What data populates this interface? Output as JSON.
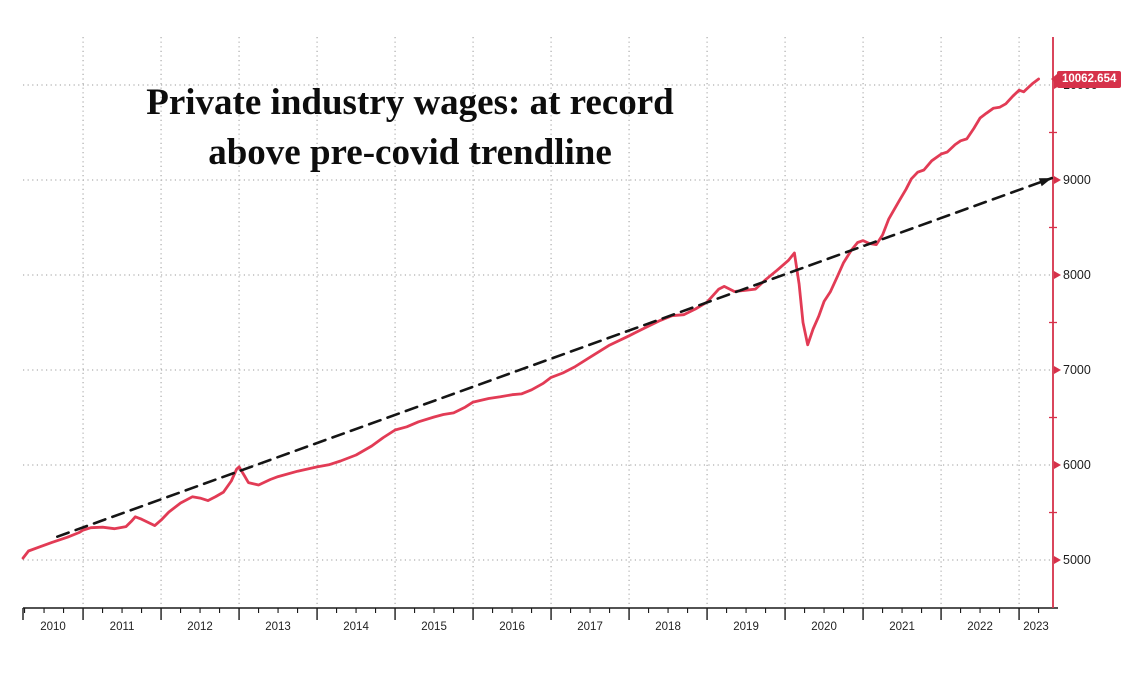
{
  "title": {
    "line1": "Private industry wages: at record",
    "line2": "above pre-covid trendline"
  },
  "colors": {
    "series_line": "#e23b55",
    "trend_line": "#151515",
    "y_axis": "#d6314a",
    "label_box": "#d6314a",
    "grid": "#9b9b9b",
    "x_axis": "#1a1a1a",
    "tick_text": "#1c1c1c"
  },
  "last_value": {
    "text": "10062.654",
    "value": 10062.654
  },
  "chart_data": {
    "type": "line",
    "title": "Private industry wages: at record above pre-covid trendline",
    "xlabel": "",
    "ylabel": "",
    "grid": true,
    "legend": false,
    "x_axis": {
      "unit": "year",
      "range": [
        2010.23,
        2023.435
      ],
      "year_labels": [
        "2010",
        "2011",
        "2012",
        "2013",
        "2014",
        "2015",
        "2016",
        "2017",
        "2018",
        "2019",
        "2020",
        "2021",
        "2022",
        "2023"
      ],
      "gridline_years": [
        2011,
        2012,
        2013,
        2014,
        2015,
        2016,
        2017,
        2018,
        2019,
        2020,
        2021,
        2022,
        2023
      ],
      "minor_tick_step": 0.25
    },
    "y_axis": {
      "side": "right",
      "range": [
        4495,
        10505
      ],
      "tick_values": [
        5000,
        6000,
        7000,
        8000,
        9000,
        10000
      ],
      "minor_tick_values": [
        5500,
        6500,
        7500,
        8500,
        9500
      ],
      "last_value_label": "10062.654"
    },
    "series": [
      {
        "name": "private-industry-wages",
        "style": "solid",
        "points": [
          [
            2010.23,
            5020
          ],
          [
            2010.3,
            5095
          ],
          [
            2010.45,
            5140
          ],
          [
            2010.6,
            5185
          ],
          [
            2010.8,
            5240
          ],
          [
            2010.95,
            5290
          ],
          [
            2011.0,
            5315
          ],
          [
            2011.1,
            5340
          ],
          [
            2011.25,
            5345
          ],
          [
            2011.4,
            5330
          ],
          [
            2011.55,
            5352
          ],
          [
            2011.62,
            5408
          ],
          [
            2011.67,
            5455
          ],
          [
            2011.75,
            5430
          ],
          [
            2011.83,
            5398
          ],
          [
            2011.92,
            5362
          ],
          [
            2012.0,
            5420
          ],
          [
            2012.1,
            5505
          ],
          [
            2012.25,
            5600
          ],
          [
            2012.4,
            5665
          ],
          [
            2012.5,
            5652
          ],
          [
            2012.6,
            5625
          ],
          [
            2012.7,
            5668
          ],
          [
            2012.8,
            5715
          ],
          [
            2012.9,
            5832
          ],
          [
            2012.97,
            5958
          ],
          [
            2013.0,
            5980
          ],
          [
            2013.07,
            5885
          ],
          [
            2013.12,
            5815
          ],
          [
            2013.25,
            5790
          ],
          [
            2013.4,
            5848
          ],
          [
            2013.5,
            5878
          ],
          [
            2013.75,
            5935
          ],
          [
            2014.0,
            5980
          ],
          [
            2014.15,
            6002
          ],
          [
            2014.3,
            6042
          ],
          [
            2014.5,
            6105
          ],
          [
            2014.7,
            6200
          ],
          [
            2014.85,
            6290
          ],
          [
            2015.0,
            6368
          ],
          [
            2015.15,
            6402
          ],
          [
            2015.3,
            6455
          ],
          [
            2015.5,
            6505
          ],
          [
            2015.62,
            6532
          ],
          [
            2015.75,
            6548
          ],
          [
            2015.9,
            6610
          ],
          [
            2016.0,
            6662
          ],
          [
            2016.2,
            6700
          ],
          [
            2016.35,
            6718
          ],
          [
            2016.5,
            6740
          ],
          [
            2016.62,
            6748
          ],
          [
            2016.75,
            6792
          ],
          [
            2016.9,
            6860
          ],
          [
            2017.0,
            6922
          ],
          [
            2017.15,
            6968
          ],
          [
            2017.3,
            7032
          ],
          [
            2017.5,
            7135
          ],
          [
            2017.75,
            7262
          ],
          [
            2018.0,
            7360
          ],
          [
            2018.2,
            7442
          ],
          [
            2018.4,
            7522
          ],
          [
            2018.55,
            7572
          ],
          [
            2018.7,
            7582
          ],
          [
            2018.85,
            7642
          ],
          [
            2019.0,
            7715
          ],
          [
            2019.15,
            7852
          ],
          [
            2019.22,
            7880
          ],
          [
            2019.35,
            7826
          ],
          [
            2019.5,
            7840
          ],
          [
            2019.62,
            7852
          ],
          [
            2019.75,
            7950
          ],
          [
            2019.9,
            8052
          ],
          [
            2020.04,
            8152
          ],
          [
            2020.12,
            8232
          ],
          [
            2020.18,
            7905
          ],
          [
            2020.23,
            7500
          ],
          [
            2020.29,
            7265
          ],
          [
            2020.36,
            7432
          ],
          [
            2020.43,
            7562
          ],
          [
            2020.5,
            7722
          ],
          [
            2020.58,
            7822
          ],
          [
            2020.67,
            7982
          ],
          [
            2020.75,
            8130
          ],
          [
            2020.85,
            8262
          ],
          [
            2020.93,
            8342
          ],
          [
            2021.0,
            8362
          ],
          [
            2021.08,
            8332
          ],
          [
            2021.17,
            8320
          ],
          [
            2021.25,
            8422
          ],
          [
            2021.33,
            8590
          ],
          [
            2021.47,
            8790
          ],
          [
            2021.55,
            8902
          ],
          [
            2021.62,
            9012
          ],
          [
            2021.7,
            9082
          ],
          [
            2021.78,
            9105
          ],
          [
            2021.88,
            9202
          ],
          [
            2022.0,
            9272
          ],
          [
            2022.08,
            9295
          ],
          [
            2022.18,
            9372
          ],
          [
            2022.25,
            9412
          ],
          [
            2022.33,
            9432
          ],
          [
            2022.42,
            9542
          ],
          [
            2022.5,
            9652
          ],
          [
            2022.58,
            9702
          ],
          [
            2022.67,
            9755
          ],
          [
            2022.75,
            9765
          ],
          [
            2022.83,
            9802
          ],
          [
            2022.92,
            9882
          ],
          [
            2023.0,
            9945
          ],
          [
            2023.06,
            9928
          ],
          [
            2023.12,
            9975
          ],
          [
            2023.17,
            10012
          ],
          [
            2023.25,
            10062.654
          ]
        ]
      },
      {
        "name": "pre-covid-trendline",
        "style": "dashed",
        "arrow_end": true,
        "points": [
          [
            2010.67,
            5245
          ],
          [
            2023.42,
            9020
          ]
        ]
      }
    ]
  }
}
